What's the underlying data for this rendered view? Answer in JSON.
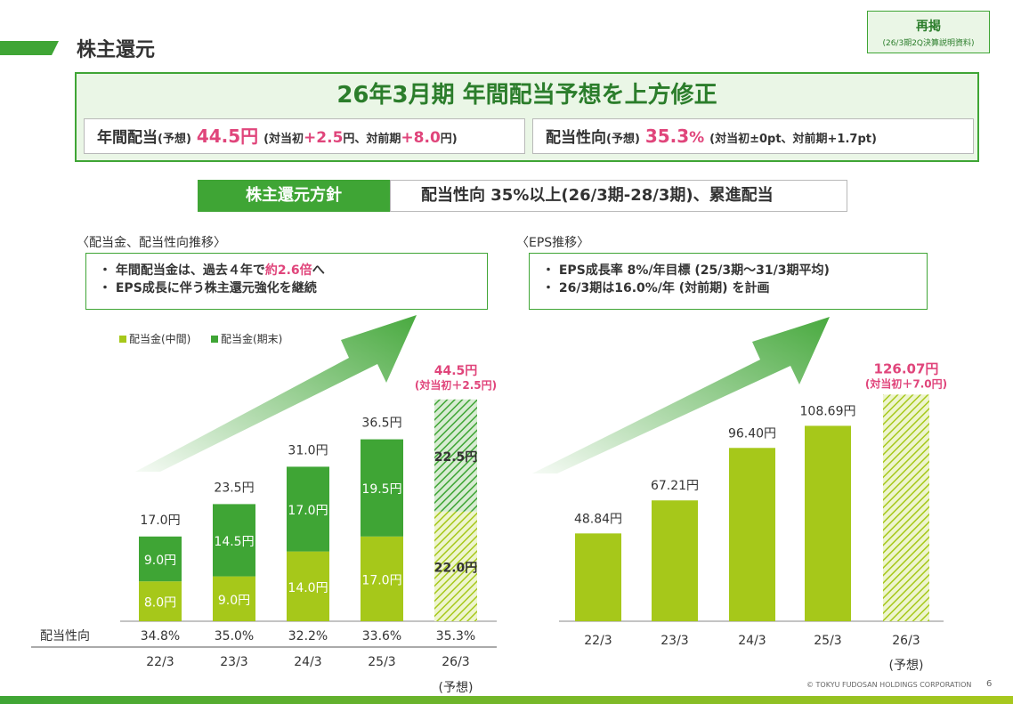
{
  "header": {
    "title": "株主還元",
    "repost_label": "再掲",
    "repost_note": "(26/3期2Q決算説明資料)"
  },
  "banner": {
    "title": "26年3月期 年間配当予想を上方修正",
    "dividend_label": "年間配当",
    "dividend_forecast": "(予想)",
    "dividend_value": "44.5円",
    "dividend_detail_open": "(対当初",
    "dividend_vs_initial": "+2.5",
    "dividend_detail_mid": "円、対前期",
    "dividend_vs_prior": "+8.0",
    "dividend_detail_close": "円)",
    "payout_label": "配当性向",
    "payout_forecast": "(予想)",
    "payout_value": "35.3",
    "payout_unit": "%",
    "payout_detail": "(対当初±0pt、対前期+1.7pt)"
  },
  "policy": {
    "label": "株主還元方針",
    "text": "配当性向 35%以上(26/3期-28/3期)、累進配当"
  },
  "left": {
    "section_title": "〈配当金、配当性向推移〉",
    "note_line1_prefix": "・ 年間配当金は、過去４年で",
    "note_line1_highlight": "約2.6倍",
    "note_line1_suffix": "へ",
    "note_line2": "・ EPS成長に伴う株主還元強化を継続",
    "legend_interim": "配当金(中間)",
    "legend_yearend": "配当金(期末)",
    "payout_row_label": "配当性向"
  },
  "right": {
    "section_title": "〈EPS推移〉",
    "note_line1": "・ EPS成長率 8%/年目標 (25/3期〜31/3期平均)",
    "note_line2": "・ 26/3期は16.0%/年 (対前期) を計画"
  },
  "chart_data": [
    {
      "type": "bar",
      "stacked": true,
      "title": "配当金、配当性向推移",
      "categories": [
        "22/3",
        "23/3",
        "24/3",
        "25/3",
        "26/3"
      ],
      "category_sublabels": [
        "",
        "",
        "",
        "",
        "(予想)"
      ],
      "series": [
        {
          "name": "配当金(中間)",
          "values": [
            8.0,
            9.0,
            14.0,
            17.0,
            22.0
          ],
          "labels": [
            "8.0円",
            "9.0円",
            "14.0円",
            "17.0円",
            "22.0円"
          ],
          "color": "#a6c81a"
        },
        {
          "name": "配当金(期末)",
          "values": [
            9.0,
            14.5,
            17.0,
            19.5,
            22.5
          ],
          "labels": [
            "9.0円",
            "14.5円",
            "17.0円",
            "19.5円",
            "22.5円"
          ],
          "color": "#3fa535"
        }
      ],
      "totals": [
        17.0,
        23.5,
        31.0,
        36.5,
        44.5
      ],
      "total_labels": [
        "17.0円",
        "23.5円",
        "31.0円",
        "36.5円",
        "44.5円"
      ],
      "forecast_annotation": "(対当初＋2.5円)",
      "payout_ratio": [
        "34.8%",
        "35.0%",
        "32.2%",
        "33.6%",
        "35.3%"
      ],
      "ylim": [
        0,
        50
      ]
    },
    {
      "type": "bar",
      "title": "EPS推移",
      "categories": [
        "22/3",
        "23/3",
        "24/3",
        "25/3",
        "26/3"
      ],
      "category_sublabels": [
        "",
        "",
        "",
        "",
        "(予想)"
      ],
      "values": [
        48.84,
        67.21,
        96.4,
        108.69,
        126.07
      ],
      "value_labels": [
        "48.84円",
        "67.21円",
        "96.40円",
        "108.69円",
        "126.07円"
      ],
      "forecast_annotation": "(対当初＋7.0円)",
      "color": "#a6c81a",
      "ylim": [
        0,
        135
      ]
    }
  ],
  "footer": {
    "copyright": "© TOKYU FUDOSAN HOLDINGS CORPORATION",
    "page": "6"
  }
}
